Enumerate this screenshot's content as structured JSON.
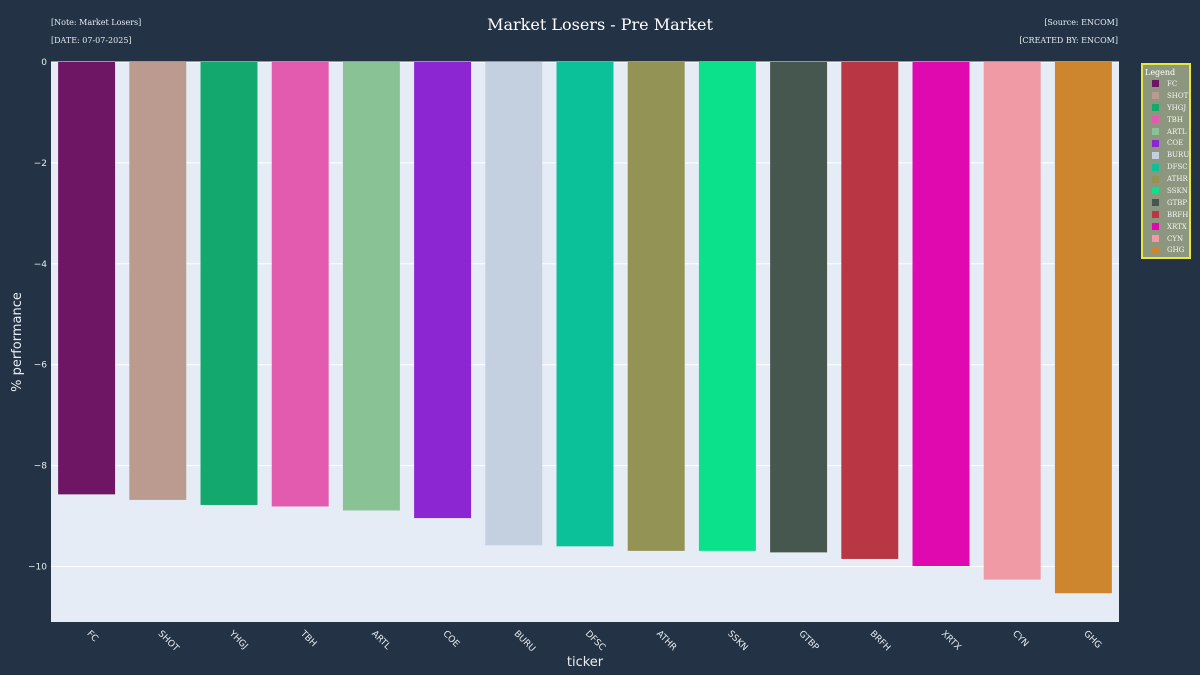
{
  "header": {
    "note": "[Note: Market Losers]",
    "date": "[DATE: 07-07-2025]",
    "source": "[Source: ENCOM]",
    "created_by": "[CREATED BY: ENCOM]"
  },
  "chart_data": {
    "type": "bar",
    "title": "Market Losers - Pre Market",
    "xlabel": "ticker",
    "ylabel": "% performance",
    "categories": [
      "FC",
      "SHOT",
      "YHGJ",
      "TBH",
      "ARTL",
      "COE",
      "BURU",
      "DFSC",
      "ATHR",
      "SSKN",
      "GTBP",
      "BRFH",
      "XRTX",
      "CYN",
      "GHG"
    ],
    "values": [
      -8.57,
      -8.68,
      -8.78,
      -8.81,
      -8.89,
      -9.04,
      -9.58,
      -9.6,
      -9.69,
      -9.69,
      -9.72,
      -9.85,
      -9.99,
      -10.26,
      -10.53
    ],
    "colors": [
      "#6e1563",
      "#bb9b8f",
      "#13a86d",
      "#e35baf",
      "#89c295",
      "#8c26d2",
      "#c4d0e0",
      "#0bc19a",
      "#939355",
      "#0be08b",
      "#45574f",
      "#b93645",
      "#e009b0",
      "#f09aa5",
      "#cd862e"
    ],
    "ylim": [
      -11.1,
      0
    ],
    "yticks": [
      0,
      -2,
      -4,
      -6,
      -8,
      -10
    ],
    "ytick_labels": [
      "0",
      "−2",
      "−4",
      "−6",
      "−8",
      "−10"
    ],
    "grid": true,
    "legend": {
      "title": "Legend",
      "placement": "right"
    }
  }
}
